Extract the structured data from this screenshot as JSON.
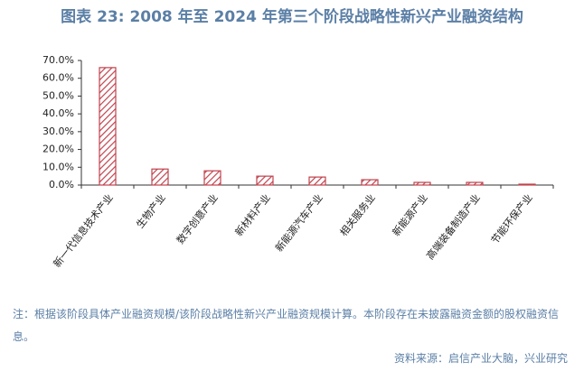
{
  "chart_data": {
    "type": "bar",
    "title": "图表 23: 2008 年至 2024 年第三个阶段战略性新兴产业融资结构",
    "categories": [
      "新一代信息技术产业",
      "生物产业",
      "数字创意产业",
      "新材料产业",
      "新能源汽车产业",
      "相关服务业",
      "新能源产业",
      "高端装备制造产业",
      "节能环保产业"
    ],
    "values": [
      66,
      9,
      8,
      5,
      4.5,
      3,
      1.5,
      1.5,
      0.5
    ],
    "color": "#c0424d",
    "ylim": [
      0,
      70
    ],
    "yticks": [
      {
        "value": 0,
        "label": "0.0%"
      },
      {
        "value": 10,
        "label": "10.0%"
      },
      {
        "value": 20,
        "label": "20.0%"
      },
      {
        "value": 30,
        "label": "30.0%"
      },
      {
        "value": 40,
        "label": "40.0%"
      },
      {
        "value": 50,
        "label": "50.0%"
      },
      {
        "value": 60,
        "label": "60.0%"
      },
      {
        "value": 70,
        "label": "70.0%"
      }
    ],
    "grid": false,
    "note": "注：根据该阶段具体产业融资规模/该阶段战略性新兴产业融资规模计算。本阶段存在未披露融资金额的股权融资信息。",
    "source": "资料来源：启信产业大脑，兴业研究"
  }
}
